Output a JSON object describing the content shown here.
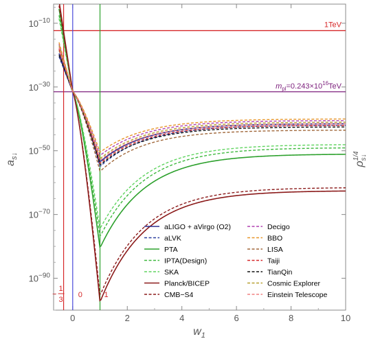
{
  "chart_data": {
    "type": "line",
    "xlabel": "w",
    "xlabel_sub": "1",
    "ylabel": "a",
    "ylabel_sub": "s↓",
    "right_label": "ρ",
    "right_label_sup": "1/4",
    "right_label_sub": "s↓",
    "xlim": [
      -0.7,
      10
    ],
    "ylim": [
      -100,
      -4
    ],
    "y_log10": true,
    "x_ticks": [
      {
        "value": 0,
        "label": "0"
      },
      {
        "value": 2,
        "label": "2"
      },
      {
        "value": 4,
        "label": "4"
      },
      {
        "value": 6,
        "label": "6"
      },
      {
        "value": 8,
        "label": "8"
      },
      {
        "value": 10,
        "label": "10"
      }
    ],
    "y_ticks": [
      {
        "value": -10,
        "base": "10",
        "exp": "−10"
      },
      {
        "value": -30,
        "base": "10",
        "exp": "−30"
      },
      {
        "value": -50,
        "base": "10",
        "exp": "−50"
      },
      {
        "value": -70,
        "base": "10",
        "exp": "−70"
      },
      {
        "value": -90,
        "base": "10",
        "exp": "−90"
      }
    ],
    "hlines": [
      {
        "y": -12.3,
        "color": "#d62728",
        "label": "1TeV"
      },
      {
        "y": -31.5,
        "color": "#7b1d7b",
        "label_m": "m",
        "label_sub": "pl",
        "label_rest": "=0.243×10",
        "label_sup": "16",
        "label_unit": "TeV"
      }
    ],
    "vlines": [
      {
        "x": -0.3333,
        "color": "#d62728",
        "label_num": "1",
        "label_den": "3",
        "label_sign": "−"
      },
      {
        "x": 0,
        "color": "#4a4adb",
        "label": "0"
      },
      {
        "x": 1,
        "color": "#2ca02c",
        "label": "1"
      }
    ],
    "series": [
      {
        "name": "aLIGO + aVirgo (O2)",
        "color": "#2e2e8f",
        "dash": "solid",
        "start": -19.5,
        "pivot": -31.5,
        "min": -53.5,
        "end": -41.5,
        "width": 1.6
      },
      {
        "name": "aLVK",
        "color": "#2a3d9e",
        "dash": "dashed",
        "start": -20.5,
        "pivot": -31.5,
        "min": -55.0,
        "end": -42.0,
        "width": 1.4
      },
      {
        "name": "PTA",
        "color": "#2ca02c",
        "dash": "solid",
        "start": -5.5,
        "pivot": -31.5,
        "min": -80.5,
        "end": -51.0,
        "width": 1.6
      },
      {
        "name": "IPTA(Design)",
        "color": "#3cb83c",
        "dash": "dashed",
        "start": -7.5,
        "pivot": -31.5,
        "min": -77.0,
        "end": -49.0,
        "width": 1.4
      },
      {
        "name": "SKA",
        "color": "#5fd45f",
        "dash": "dashed",
        "start": -8.5,
        "pivot": -31.5,
        "min": -74.5,
        "end": -48.0,
        "width": 1.4
      },
      {
        "name": "Planck/BICEP",
        "color": "#8b1a1a",
        "dash": "solid",
        "start": -3.0,
        "pivot": -31.5,
        "min": -97.5,
        "end": -62.5,
        "width": 1.6
      },
      {
        "name": "CMB−S4",
        "color": "#8b1a1a",
        "dash": "dashed",
        "start": -4.5,
        "pivot": -31.5,
        "min": -95.5,
        "end": -61.5,
        "width": 1.4
      },
      {
        "name": "Decigo",
        "color": "#b040b0",
        "dash": "dashed",
        "start": -16.5,
        "pivot": -31.5,
        "min": -51.5,
        "end": -40.5,
        "width": 1.4
      },
      {
        "name": "BBO",
        "color": "#e8962a",
        "dash": "dashed",
        "start": -16.0,
        "pivot": -31.5,
        "min": -50.5,
        "end": -40.0,
        "width": 1.4
      },
      {
        "name": "LISA",
        "color": "#a0673a",
        "dash": "dashed",
        "start": -18.5,
        "pivot": -31.5,
        "min": -56.5,
        "end": -43.5,
        "width": 1.4
      },
      {
        "name": "Taiji",
        "color": "#d62728",
        "dash": "dashed",
        "start": -18.0,
        "pivot": -31.5,
        "min": -54.0,
        "end": -42.0,
        "width": 1.4
      },
      {
        "name": "TianQin",
        "color": "#111111",
        "dash": "dashed",
        "start": -20.0,
        "pivot": -31.5,
        "min": -54.5,
        "end": -42.5,
        "width": 1.4
      },
      {
        "name": "Cosmic Explorer",
        "color": "#b8a030",
        "dash": "dashed",
        "start": -17.0,
        "pivot": -31.5,
        "min": -52.5,
        "end": -41.0,
        "width": 1.4
      },
      {
        "name": "Einstein Telescope",
        "color": "#f08080",
        "dash": "dashed",
        "start": -17.5,
        "pivot": -31.5,
        "min": -53.0,
        "end": -41.5,
        "width": 1.4
      }
    ],
    "legend_columns": [
      [
        "aLIGO + aVirgo (O2)",
        "aLVK",
        "PTA",
        "IPTA(Design)",
        "SKA",
        "Planck/BICEP",
        "CMB−S4"
      ],
      [
        "Decigo",
        "BBO",
        "LISA",
        "Taiji",
        "TianQin",
        "Cosmic Explorer",
        "Einstein Telescope"
      ]
    ]
  }
}
